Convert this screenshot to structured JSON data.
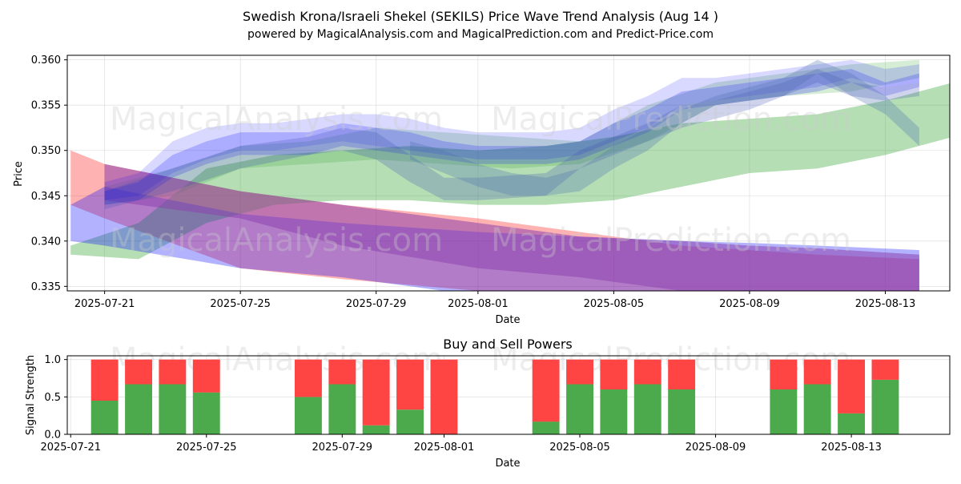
{
  "page": {
    "title_line1": "Swedish Krona/Israeli Shekel (SEKILS) Price Wave Trend Analysis (Aug 14 )",
    "title_line2": "powered by MagicalAnalysis.com and MagicalPrediction.com and Predict-Price.com",
    "watermarks": [
      "MagicalAnalysis.com",
      "MagicalPrediction.com"
    ]
  },
  "chart_data": [
    {
      "type": "area",
      "title": "",
      "xlabel": "Date",
      "ylabel": "Price",
      "xlim": [
        -1.1,
        24.9
      ],
      "ylim": [
        0.3345,
        0.3605
      ],
      "grid": true,
      "x_origin_date": "2025-07-21",
      "x_ticks": [
        0,
        4,
        8,
        11,
        15,
        19,
        23
      ],
      "x_tick_labels": [
        "2025-07-21",
        "2025-07-25",
        "2025-07-29",
        "2025-08-01",
        "2025-08-05",
        "2025-08-09",
        "2025-08-13"
      ],
      "y_ticks": [
        0.335,
        0.34,
        0.345,
        0.35,
        0.355,
        0.36
      ],
      "y_tick_labels": [
        "0.335",
        "0.340",
        "0.345",
        "0.350",
        "0.355",
        "0.360"
      ],
      "series": [
        {
          "name": "red-band",
          "color": "#ff0000",
          "opacity": 0.3,
          "x": [
            -1,
            0,
            4,
            7,
            11,
            14,
            17,
            19,
            21,
            24
          ],
          "lower": [
            0.344,
            0.3425,
            0.337,
            0.3358,
            0.3345,
            0.3335,
            0.3328,
            0.3325,
            0.3322,
            0.3318
          ],
          "upper": [
            0.35,
            0.3485,
            0.3455,
            0.344,
            0.3425,
            0.341,
            0.3395,
            0.339,
            0.3385,
            0.338
          ]
        },
        {
          "name": "green-band-main",
          "color": "#2ca02c",
          "opacity": 0.35,
          "x": [
            -1,
            1,
            3,
            5,
            7,
            9,
            11,
            13,
            15,
            17,
            19,
            21,
            23,
            25
          ],
          "lower": [
            0.3385,
            0.338,
            0.342,
            0.344,
            0.3445,
            0.3445,
            0.344,
            0.344,
            0.3445,
            0.346,
            0.3475,
            0.348,
            0.3495,
            0.3515
          ],
          "upper": [
            0.3395,
            0.342,
            0.348,
            0.3495,
            0.35,
            0.3505,
            0.35,
            0.3505,
            0.3515,
            0.353,
            0.3535,
            0.354,
            0.3555,
            0.3575
          ]
        },
        {
          "name": "green-band-2",
          "color": "#2ca02c",
          "opacity": 0.2,
          "x": [
            0,
            2,
            4,
            6,
            8,
            10,
            12,
            14,
            16,
            18,
            20,
            22,
            24
          ],
          "lower": [
            0.344,
            0.345,
            0.348,
            0.3485,
            0.349,
            0.3485,
            0.348,
            0.3485,
            0.351,
            0.355,
            0.356,
            0.3565,
            0.358
          ],
          "upper": [
            0.346,
            0.348,
            0.3505,
            0.351,
            0.3525,
            0.352,
            0.3515,
            0.351,
            0.355,
            0.3575,
            0.3585,
            0.3595,
            0.36
          ]
        },
        {
          "name": "blue-band",
          "color": "#0000ff",
          "opacity": 0.3,
          "x": [
            -1,
            0,
            4,
            7,
            11,
            14,
            17,
            19,
            21,
            24
          ],
          "lower": [
            0.34,
            0.3395,
            0.337,
            0.336,
            0.334,
            0.333,
            0.332,
            0.3315,
            0.331,
            0.3305
          ],
          "upper": [
            0.344,
            0.346,
            0.343,
            0.342,
            0.341,
            0.3405,
            0.34,
            0.3398,
            0.3395,
            0.339
          ]
        },
        {
          "name": "purple-band",
          "color": "#8e44ad",
          "opacity": 0.55,
          "x": [
            0,
            4,
            7,
            11,
            14,
            17,
            19,
            21,
            24
          ],
          "lower": [
            0.3445,
            0.3425,
            0.3395,
            0.337,
            0.336,
            0.3345,
            0.334,
            0.3335,
            0.333
          ],
          "upper": [
            0.3485,
            0.3455,
            0.344,
            0.342,
            0.3405,
            0.34,
            0.3395,
            0.3392,
            0.3385
          ]
        },
        {
          "name": "blue-wave-1",
          "color": "#0000ff",
          "opacity": 0.15,
          "x": [
            0,
            1,
            2,
            3,
            4,
            5,
            6,
            7,
            8,
            9,
            10,
            11,
            12,
            13,
            14,
            15,
            16,
            17,
            18,
            19,
            20,
            21,
            22,
            23,
            24
          ],
          "lower": [
            0.3445,
            0.345,
            0.3475,
            0.349,
            0.35,
            0.35,
            0.3505,
            0.351,
            0.3505,
            0.35,
            0.3495,
            0.349,
            0.349,
            0.349,
            0.3495,
            0.351,
            0.3525,
            0.355,
            0.3555,
            0.356,
            0.3565,
            0.357,
            0.358,
            0.357,
            0.3575
          ],
          "upper": [
            0.3465,
            0.3475,
            0.351,
            0.3525,
            0.353,
            0.353,
            0.3535,
            0.354,
            0.354,
            0.3535,
            0.3525,
            0.352,
            0.352,
            0.352,
            0.3525,
            0.3545,
            0.356,
            0.358,
            0.358,
            0.3585,
            0.359,
            0.3595,
            0.36,
            0.359,
            0.3595
          ]
        },
        {
          "name": "blue-wave-2",
          "color": "#0000ff",
          "opacity": 0.2,
          "x": [
            0,
            1,
            2,
            3,
            4,
            5,
            6,
            7,
            8,
            9,
            10,
            11,
            12,
            13,
            14,
            15,
            16,
            17,
            18,
            19,
            20,
            21,
            22,
            23,
            24
          ],
          "lower": [
            0.344,
            0.3445,
            0.347,
            0.3485,
            0.3495,
            0.3495,
            0.3495,
            0.3505,
            0.35,
            0.3495,
            0.349,
            0.3485,
            0.3485,
            0.3485,
            0.349,
            0.3505,
            0.352,
            0.3545,
            0.355,
            0.3555,
            0.356,
            0.3565,
            0.3575,
            0.356,
            0.357
          ],
          "upper": [
            0.3455,
            0.3465,
            0.3495,
            0.351,
            0.352,
            0.352,
            0.352,
            0.353,
            0.3525,
            0.352,
            0.351,
            0.3505,
            0.3505,
            0.3505,
            0.351,
            0.353,
            0.3545,
            0.3565,
            0.357,
            0.3575,
            0.358,
            0.3585,
            0.359,
            0.3575,
            0.3585
          ]
        },
        {
          "name": "blue-wave-3",
          "color": "#3f51b5",
          "opacity": 0.25,
          "x": [
            0,
            2,
            4,
            6,
            7,
            8,
            9,
            10,
            11,
            13,
            14,
            15,
            16,
            17,
            18,
            19,
            20,
            21,
            22,
            23,
            24
          ],
          "lower": [
            0.3435,
            0.3455,
            0.348,
            0.3495,
            0.35,
            0.349,
            0.3465,
            0.3445,
            0.3445,
            0.345,
            0.348,
            0.3495,
            0.351,
            0.3525,
            0.3535,
            0.3545,
            0.356,
            0.3575,
            0.356,
            0.3555,
            0.356
          ],
          "upper": [
            0.3455,
            0.348,
            0.3505,
            0.3515,
            0.3525,
            0.352,
            0.3495,
            0.347,
            0.347,
            0.3475,
            0.35,
            0.3515,
            0.353,
            0.355,
            0.3555,
            0.3565,
            0.3575,
            0.359,
            0.3575,
            0.357,
            0.3575
          ]
        },
        {
          "name": "blue-wave-4",
          "color": "#4f6fae",
          "opacity": 0.3,
          "x": [
            9,
            10,
            11,
            12,
            13,
            14,
            15,
            16,
            17,
            18,
            19,
            20,
            21,
            22,
            23,
            24
          ],
          "lower": [
            0.349,
            0.3475,
            0.346,
            0.345,
            0.345,
            0.3455,
            0.348,
            0.35,
            0.353,
            0.355,
            0.3555,
            0.356,
            0.3585,
            0.356,
            0.354,
            0.3505
          ],
          "upper": [
            0.351,
            0.35,
            0.3485,
            0.3475,
            0.347,
            0.348,
            0.3505,
            0.3525,
            0.3545,
            0.356,
            0.357,
            0.358,
            0.36,
            0.3585,
            0.356,
            0.3525
          ]
        }
      ]
    },
    {
      "type": "bar",
      "title": "Buy and Sell Powers",
      "xlabel": "Date",
      "ylabel": "Signal Strength",
      "xlim": [
        -1.1,
        24.9
      ],
      "ylim": [
        0,
        1.05
      ],
      "grid": true,
      "x_ticks": [
        -1,
        3,
        7,
        10,
        14,
        18,
        22
      ],
      "x_tick_labels": [
        "2025-07-21",
        "2025-07-25",
        "2025-07-29",
        "2025-08-01",
        "2025-08-05",
        "2025-08-09",
        "2025-08-13"
      ],
      "y_ticks": [
        0.0,
        0.5,
        1.0
      ],
      "y_tick_labels": [
        "0.0",
        "0.5",
        "1.0"
      ],
      "x": [
        0,
        1,
        2,
        3,
        6,
        7,
        8,
        9,
        10,
        13,
        14,
        15,
        16,
        17,
        20,
        21,
        22,
        23
      ],
      "series": [
        {
          "name": "Buy",
          "color": "#4caa4c",
          "values": [
            0.45,
            0.67,
            0.67,
            0.56,
            0.5,
            0.67,
            0.12,
            0.33,
            0.0,
            0.17,
            0.67,
            0.6,
            0.67,
            0.6,
            0.6,
            0.67,
            0.28,
            0.73
          ]
        },
        {
          "name": "Sell",
          "color": "#ff4444",
          "values": [
            0.55,
            0.33,
            0.33,
            0.44,
            0.5,
            0.33,
            0.88,
            0.67,
            1.0,
            0.83,
            0.33,
            0.4,
            0.33,
            0.4,
            0.4,
            0.33,
            0.72,
            0.27
          ]
        }
      ]
    }
  ]
}
